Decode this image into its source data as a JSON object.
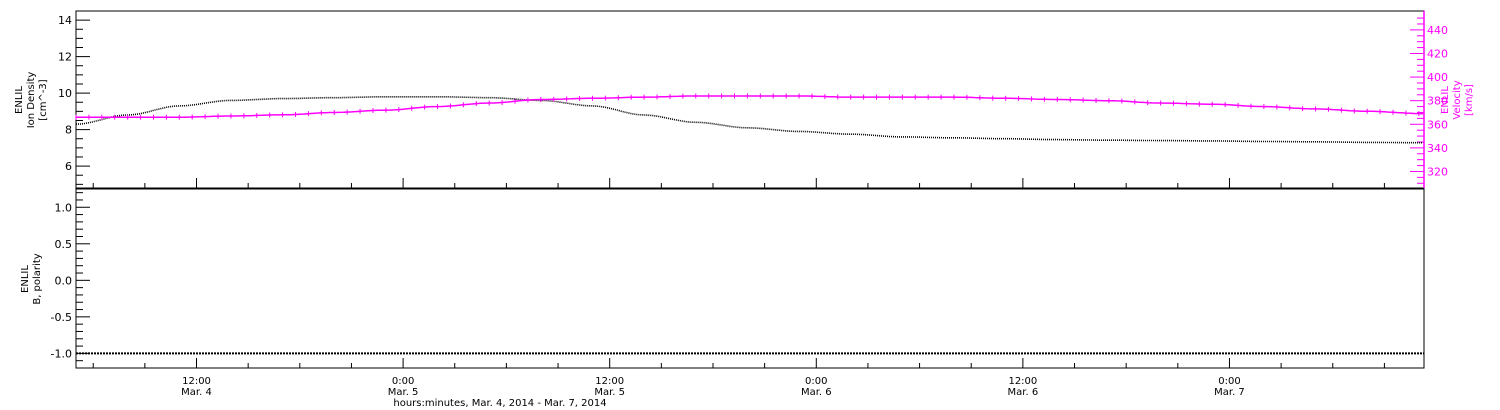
{
  "colors": {
    "density": "#000000",
    "velocity": "#ff00ff",
    "polarity": "#000000",
    "axis": "#000000"
  },
  "chart_data": [
    {
      "type": "line",
      "ylabel": [
        "ENLIL",
        "Ion Density",
        "[cm^-3]"
      ],
      "ylabel_right": [
        "ENLIL",
        "Velocity",
        "[km/s]"
      ],
      "x_unit": "hours since Mar. 4, 2014 00:00",
      "xlim": [
        5,
        83.3
      ],
      "ylim": [
        4.8,
        14.5
      ],
      "yticks": [
        "6",
        "8",
        "10",
        "12",
        "14"
      ],
      "ylim_right": [
        306,
        456
      ],
      "yticks_right": [
        "320",
        "340",
        "360",
        "380",
        "400",
        "420",
        "440"
      ],
      "series": [
        {
          "name": "Ion Density",
          "axis": "left",
          "x": [
            5,
            8,
            11,
            14,
            17,
            20,
            23,
            26,
            29,
            32,
            35,
            38,
            41,
            44,
            47,
            50,
            53,
            56,
            59,
            62,
            65,
            68,
            71,
            74,
            77,
            80,
            83.3
          ],
          "y": [
            8.3,
            8.8,
            9.3,
            9.6,
            9.7,
            9.75,
            9.8,
            9.8,
            9.75,
            9.6,
            9.3,
            8.8,
            8.4,
            8.1,
            7.9,
            7.75,
            7.6,
            7.55,
            7.5,
            7.45,
            7.42,
            7.4,
            7.38,
            7.35,
            7.33,
            7.3,
            7.28
          ]
        },
        {
          "name": "Velocity",
          "axis": "right",
          "x": [
            5,
            8,
            11,
            14,
            17,
            20,
            23,
            26,
            29,
            32,
            35,
            38,
            41,
            44,
            47,
            50,
            53,
            56,
            59,
            62,
            65,
            68,
            71,
            74,
            77,
            80,
            83.3
          ],
          "y": [
            366,
            366,
            366,
            367,
            368,
            370,
            372,
            375,
            378,
            381,
            382,
            383,
            384,
            384,
            384,
            383,
            383,
            383,
            382,
            381,
            380,
            378,
            377,
            375,
            373,
            371,
            369
          ]
        }
      ]
    },
    {
      "type": "line",
      "ylabel": [
        "ENLIL",
        "B, polarity"
      ],
      "xlim": [
        5,
        83.3
      ],
      "ylim": [
        -1.2,
        1.25
      ],
      "yticks": [
        "-1.0",
        "-0.5",
        "0.0",
        "0.5",
        "1.0"
      ],
      "series": [
        {
          "name": "B polarity",
          "x": [
            5,
            83.3
          ],
          "y": [
            -1.0,
            -1.0
          ]
        }
      ],
      "xticks": [
        {
          "x": 12,
          "time": "12:00",
          "date": "Mar. 4"
        },
        {
          "x": 24,
          "time": "0:00",
          "date": "Mar. 5"
        },
        {
          "x": 36,
          "time": "12:00",
          "date": "Mar. 5"
        },
        {
          "x": 48,
          "time": "0:00",
          "date": "Mar. 6"
        },
        {
          "x": 60,
          "time": "12:00",
          "date": "Mar. 6"
        },
        {
          "x": 72,
          "time": "0:00",
          "date": "Mar. 7"
        }
      ],
      "xlabel": "hours:minutes, Mar.  4, 2014 - Mar.  7, 2014"
    }
  ]
}
